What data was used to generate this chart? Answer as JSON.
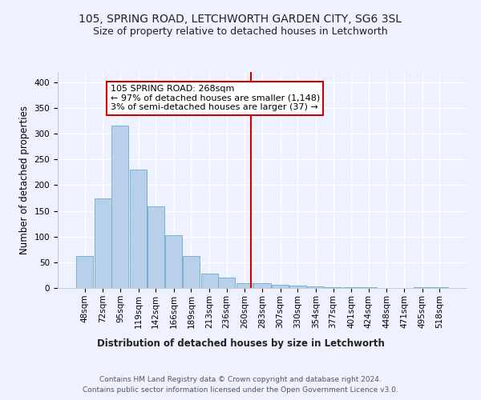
{
  "title1": "105, SPRING ROAD, LETCHWORTH GARDEN CITY, SG6 3SL",
  "title2": "Size of property relative to detached houses in Letchworth",
  "xlabel": "Distribution of detached houses by size in Letchworth",
  "ylabel": "Number of detached properties",
  "footer1": "Contains HM Land Registry data © Crown copyright and database right 2024.",
  "footer2": "Contains public sector information licensed under the Open Government Licence v3.0.",
  "annotation_line1": "105 SPRING ROAD: 268sqm",
  "annotation_line2": "← 97% of detached houses are smaller (1,148)",
  "annotation_line3": "3% of semi-detached houses are larger (37) →",
  "bar_color": "#b8d0ea",
  "bar_edge_color": "#7aafd4",
  "vline_color": "#cc0000",
  "vline_x": 268,
  "categories": [
    48,
    72,
    95,
    119,
    142,
    166,
    189,
    213,
    236,
    260,
    283,
    307,
    330,
    354,
    377,
    401,
    424,
    448,
    471,
    495,
    518
  ],
  "bin_width": 23,
  "values": [
    63,
    175,
    315,
    230,
    158,
    102,
    62,
    28,
    21,
    10,
    10,
    7,
    4,
    3,
    2,
    1,
    1,
    0,
    0,
    2,
    1
  ],
  "ylim": [
    0,
    420
  ],
  "yticks": [
    0,
    50,
    100,
    150,
    200,
    250,
    300,
    350,
    400
  ],
  "bg_color": "#eef2ff",
  "plot_bg_color": "#eef2ff",
  "title_fontsize": 10,
  "subtitle_fontsize": 9,
  "axis_label_fontsize": 8.5,
  "tick_fontsize": 7.5,
  "footer_fontsize": 6.5,
  "annotation_fontsize": 8
}
